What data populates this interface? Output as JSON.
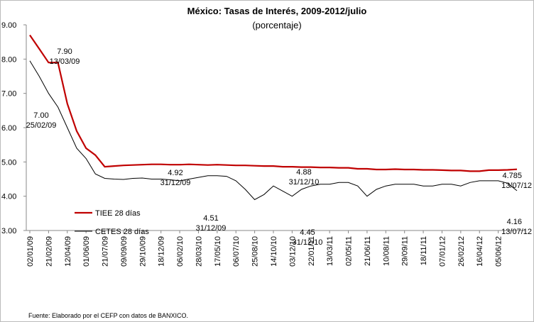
{
  "chart_data": {
    "type": "line",
    "title": "México: Tasas de Interés, 2009-2012/julio",
    "subtitle": "(porcentaje)",
    "source": "Fuente: Elaborado por el CEFP con datos de BANXICO.",
    "categories": [
      "02/01/09",
      null,
      "21/02/09",
      null,
      "12/04/09",
      null,
      "01/06/09",
      null,
      "21/07/09",
      null,
      "09/09/09",
      null,
      "29/10/09",
      null,
      "18/12/09",
      null,
      "06/02/10",
      null,
      "28/03/10",
      null,
      "17/05/10",
      null,
      "06/07/10",
      null,
      "25/08/10",
      null,
      "14/10/10",
      null,
      "03/12/10",
      null,
      "22/01/11",
      null,
      "13/03/11",
      null,
      "02/05/11",
      null,
      "21/06/11",
      null,
      "10/08/11",
      null,
      "29/09/11",
      null,
      "18/11/11",
      null,
      "07/01/12",
      null,
      "26/02/12",
      null,
      "16/04/12",
      null,
      "05/06/12",
      null,
      null
    ],
    "series": [
      {
        "name": "TIEE 28 días",
        "color": "#c00000",
        "values": [
          8.7,
          8.3,
          7.9,
          7.9,
          6.7,
          5.9,
          5.4,
          5.2,
          4.86,
          4.88,
          4.9,
          4.91,
          4.92,
          4.93,
          4.93,
          4.92,
          4.92,
          4.93,
          4.92,
          4.91,
          4.92,
          4.91,
          4.9,
          4.9,
          4.89,
          4.88,
          4.88,
          4.86,
          4.86,
          4.85,
          4.85,
          4.84,
          4.84,
          4.83,
          4.83,
          4.8,
          4.8,
          4.78,
          4.78,
          4.79,
          4.78,
          4.78,
          4.77,
          4.77,
          4.76,
          4.75,
          4.75,
          4.73,
          4.73,
          4.76,
          4.76,
          4.77,
          4.785
        ]
      },
      {
        "name": "CETES 28 días",
        "color": "#000000",
        "values": [
          7.95,
          7.5,
          7.0,
          6.6,
          6.0,
          5.4,
          5.1,
          4.65,
          4.52,
          4.5,
          4.49,
          4.52,
          4.53,
          4.5,
          4.5,
          4.48,
          4.45,
          4.5,
          4.55,
          4.6,
          4.6,
          4.58,
          4.45,
          4.2,
          3.9,
          4.05,
          4.3,
          4.15,
          4.0,
          4.2,
          4.3,
          4.35,
          4.35,
          4.4,
          4.4,
          4.3,
          4.0,
          4.2,
          4.3,
          4.35,
          4.35,
          4.35,
          4.3,
          4.3,
          4.35,
          4.35,
          4.3,
          4.4,
          4.45,
          4.45,
          4.45,
          4.38,
          4.16
        ]
      }
    ],
    "annotations": [
      {
        "value": "7.90",
        "date": "13/03/09"
      },
      {
        "value": "7.00",
        "date": "25/02/09"
      },
      {
        "value": "4.92",
        "date": "31/12/09"
      },
      {
        "value": "4.51",
        "date": "31/12/09"
      },
      {
        "value": "4.88",
        "date": "31/12/10"
      },
      {
        "value": "4.45",
        "date": "31/12/10"
      },
      {
        "value": "4.785",
        "date": "13/07/12"
      },
      {
        "value": "4.16",
        "date": "13/07/12"
      }
    ],
    "ylim": [
      3,
      9
    ],
    "yticks": [
      {
        "value": 3,
        "label": "3.00"
      },
      {
        "value": 4,
        "label": "4.00"
      },
      {
        "value": 5,
        "label": "5.00"
      },
      {
        "value": 6,
        "label": "6.00"
      },
      {
        "value": 7,
        "label": "7.00"
      },
      {
        "value": 8,
        "label": "8.00"
      },
      {
        "value": 9,
        "label": "9.00"
      }
    ],
    "grid": false
  }
}
